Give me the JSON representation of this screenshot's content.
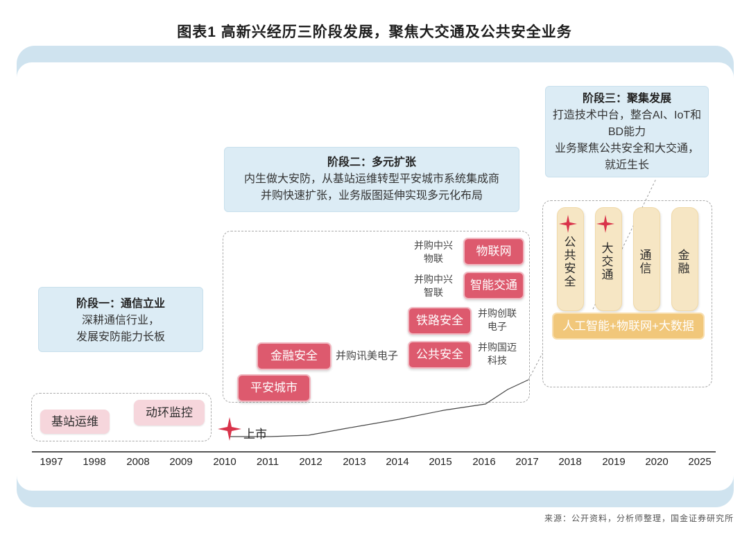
{
  "title": "图表1  高新兴经历三阶段发展，聚焦大交通及公共安全业务",
  "stages": {
    "one": {
      "title": "阶段一：通信立业",
      "lines": [
        "深耕通信行业，",
        "发展安防能力长板"
      ]
    },
    "two": {
      "title": "阶段二：多元扩张",
      "lines": [
        "内生做大安防，从基站运维转型平安城市系统集成商",
        "并购快速扩张，业务版图延伸实现多元化布局"
      ]
    },
    "three": {
      "title": "阶段三：聚集发展",
      "lines": [
        "打造技术中台，整合AI、IoT和",
        "BD能力",
        "业务聚焦公共安全和大交通，",
        "就近生长"
      ]
    }
  },
  "stage1_businesses": [
    "基站运维",
    "动环监控"
  ],
  "ipo_label": "上市",
  "stage2_businesses": {
    "iot": "物联网",
    "smart_traffic": "智能交通",
    "railway": "铁路安全",
    "public_security": "公共安全",
    "finance": "金融安全",
    "safe_city": "平安城市"
  },
  "acquisitions": {
    "zte_iot": [
      "并购中兴",
      "物联"
    ],
    "zte_smart": [
      "并购中兴",
      "智联"
    ],
    "chuanglian": [
      "并购创联",
      "电子"
    ],
    "guomai": [
      "并购国迈",
      "科技"
    ],
    "xunmei": "并购讯美电子"
  },
  "stage3_pillars": [
    "公共安全",
    "大交通",
    "通信",
    "金融"
  ],
  "stage3_base": "人工智能+物联网+大数据",
  "years": [
    "1997",
    "1998",
    "2008",
    "2009",
    "2010",
    "2011",
    "2012",
    "2013",
    "2014",
    "2015",
    "2016",
    "2017",
    "2018",
    "2019",
    "2020",
    "2025"
  ],
  "source": "来源：公开资料，分析师整理，国金证券研究所",
  "colors": {
    "stage_box": "#dcecf5",
    "frame": "#cfe3ef",
    "business_red": "#dd5a6e",
    "business_pink": "#f6d6dc",
    "pillar": "#f6e6c4",
    "base_bar": "#f1c77a",
    "star": "#d9334a"
  }
}
